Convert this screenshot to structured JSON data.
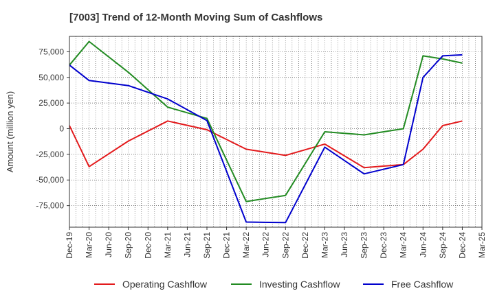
{
  "chart_data": {
    "type": "line",
    "title": "[7003]  Trend of 12-Month Moving Sum of Cashflows",
    "xlabel": "",
    "ylabel": "Amount (million yen)",
    "x_ticks": [
      "Dec-19",
      "Mar-20",
      "Jun-20",
      "Sep-20",
      "Dec-20",
      "Mar-21",
      "Jun-21",
      "Sep-21",
      "Dec-21",
      "Mar-22",
      "Jun-22",
      "Sep-22",
      "Dec-22",
      "Mar-23",
      "Jun-23",
      "Sep-23",
      "Dec-23",
      "Mar-24",
      "Jun-24",
      "Sep-24",
      "Dec-24",
      "Mar-25"
    ],
    "y_ticks": [
      75000,
      50000,
      25000,
      0,
      -25000,
      -50000,
      -75000
    ],
    "y_tick_labels": [
      "75,000",
      "50,000",
      "25,000",
      "0",
      "-25,000",
      "-50,000",
      "-75,000"
    ],
    "ylim": [
      -96000,
      90000
    ],
    "grid": true,
    "legend_position": "bottom",
    "series": [
      {
        "name": "Operating Cashflow",
        "color": "#e31a1c",
        "points": [
          {
            "x": "Dec-19",
            "y": 3000
          },
          {
            "x": "Mar-20",
            "y": -37000
          },
          {
            "x": "Sep-20",
            "y": -12000
          },
          {
            "x": "Mar-21",
            "y": 7500
          },
          {
            "x": "Sep-21",
            "y": -1000
          },
          {
            "x": "Mar-22",
            "y": -20000
          },
          {
            "x": "Sep-22",
            "y": -26000
          },
          {
            "x": "Mar-23",
            "y": -15000
          },
          {
            "x": "Sep-23",
            "y": -38000
          },
          {
            "x": "Mar-24",
            "y": -35000
          },
          {
            "x": "Jun-24",
            "y": -20000
          },
          {
            "x": "Sep-24",
            "y": 3000
          },
          {
            "x": "Dec-24",
            "y": 7500
          }
        ]
      },
      {
        "name": "Investing Cashflow",
        "color": "#228b22",
        "points": [
          {
            "x": "Dec-19",
            "y": 62000
          },
          {
            "x": "Mar-20",
            "y": 85000
          },
          {
            "x": "Sep-20",
            "y": 55000
          },
          {
            "x": "Mar-21",
            "y": 21000
          },
          {
            "x": "Sep-21",
            "y": 10000
          },
          {
            "x": "Mar-22",
            "y": -71000
          },
          {
            "x": "Sep-22",
            "y": -65000
          },
          {
            "x": "Mar-23",
            "y": -3000
          },
          {
            "x": "Sep-23",
            "y": -6000
          },
          {
            "x": "Mar-24",
            "y": 0
          },
          {
            "x": "Jun-24",
            "y": 71000
          },
          {
            "x": "Sep-24",
            "y": 68000
          },
          {
            "x": "Dec-24",
            "y": 64000
          }
        ]
      },
      {
        "name": "Free Cashflow",
        "color": "#0000cd",
        "points": [
          {
            "x": "Dec-19",
            "y": 62000
          },
          {
            "x": "Mar-20",
            "y": 47000
          },
          {
            "x": "Sep-20",
            "y": 42000
          },
          {
            "x": "Mar-21",
            "y": 29000
          },
          {
            "x": "Sep-21",
            "y": 8000
          },
          {
            "x": "Mar-22",
            "y": -91000
          },
          {
            "x": "Sep-22",
            "y": -91500
          },
          {
            "x": "Mar-23",
            "y": -18000
          },
          {
            "x": "Sep-23",
            "y": -44000
          },
          {
            "x": "Mar-24",
            "y": -35000
          },
          {
            "x": "Jun-24",
            "y": 50000
          },
          {
            "x": "Sep-24",
            "y": 71000
          },
          {
            "x": "Dec-24",
            "y": 72000
          }
        ]
      }
    ]
  }
}
